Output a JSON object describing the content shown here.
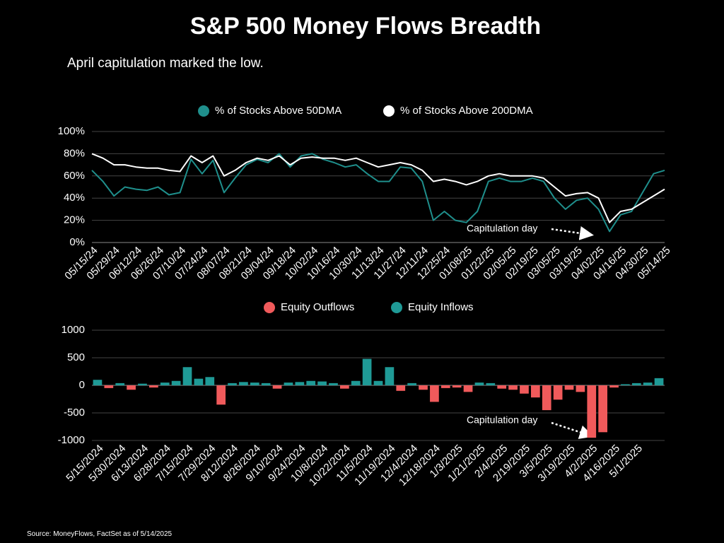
{
  "chart_data": [
    {
      "type": "line",
      "title": "S&P 500 Money Flows Breadth",
      "subtitle": "April capitulation marked the low.",
      "annotation": "Capitulation day",
      "categories": [
        "05/15/24",
        null,
        "05/29/24",
        null,
        "06/12/24",
        null,
        "06/26/24",
        null,
        "07/10/24",
        null,
        "07/24/24",
        null,
        "08/07/24",
        null,
        "08/21/24",
        null,
        "09/04/24",
        null,
        "09/18/24",
        null,
        "10/02/24",
        null,
        "10/16/24",
        null,
        "10/30/24",
        null,
        "11/13/24",
        null,
        "11/27/24",
        null,
        "12/11/24",
        null,
        "12/25/24",
        null,
        "01/08/25",
        null,
        "01/22/25",
        null,
        "02/05/25",
        null,
        "02/19/25",
        null,
        "03/05/25",
        null,
        "03/19/25",
        null,
        "04/02/25",
        null,
        "04/16/25",
        null,
        "04/30/25",
        null,
        "05/14/25"
      ],
      "series": [
        {
          "name": "% of Stocks Above 50DMA",
          "color": "#1f8f8c",
          "values": [
            65,
            55,
            42,
            50,
            48,
            47,
            50,
            43,
            45,
            75,
            62,
            74,
            45,
            58,
            70,
            75,
            72,
            80,
            68,
            78,
            80,
            75,
            72,
            68,
            70,
            62,
            55,
            55,
            68,
            67,
            55,
            20,
            28,
            20,
            18,
            28,
            55,
            58,
            55,
            55,
            58,
            55,
            40,
            30,
            38,
            40,
            30,
            10,
            25,
            28,
            45,
            62,
            65
          ]
        },
        {
          "name": "% of Stocks Above 200DMA",
          "color": "#ffffff",
          "values": [
            80,
            76,
            70,
            70,
            68,
            67,
            67,
            65,
            64,
            78,
            72,
            78,
            60,
            65,
            72,
            76,
            74,
            78,
            70,
            76,
            77,
            76,
            76,
            74,
            76,
            72,
            68,
            70,
            72,
            70,
            65,
            55,
            57,
            55,
            52,
            55,
            60,
            62,
            60,
            60,
            60,
            58,
            50,
            42,
            44,
            45,
            40,
            18,
            28,
            30,
            36,
            42,
            48
          ]
        }
      ],
      "ylim": [
        0,
        100
      ],
      "yticks": [
        {
          "value": 0,
          "label": "0%"
        },
        {
          "value": 20,
          "label": "20%"
        },
        {
          "value": 40,
          "label": "40%"
        },
        {
          "value": 60,
          "label": "60%"
        },
        {
          "value": 80,
          "label": "80%"
        },
        {
          "value": 100,
          "label": "100%"
        }
      ],
      "grid": true
    },
    {
      "type": "bar",
      "annotation": "Capitulation day",
      "categories": [
        "5/15/2024",
        null,
        "5/30/2024",
        null,
        "6/13/2024",
        null,
        "6/28/2024",
        null,
        "7/15/2024",
        null,
        "7/29/2024",
        null,
        "8/12/2024",
        null,
        "8/26/2024",
        null,
        "9/10/2024",
        null,
        "9/24/2024",
        null,
        "10/8/2024",
        null,
        "10/22/2024",
        null,
        "11/5/2024",
        null,
        "11/19/2024",
        null,
        "12/4/2024",
        null,
        "12/18/2024",
        null,
        "1/3/2025",
        null,
        "1/21/2025",
        null,
        "2/4/2025",
        null,
        "2/19/2025",
        null,
        "3/5/2025",
        null,
        "3/19/2025",
        null,
        "4/2/2025",
        null,
        "4/16/2025",
        null,
        "5/1/2025",
        null,
        null
      ],
      "series": [
        {
          "name": "Equity Outflows",
          "color": "#f05a5b",
          "values": [
            null,
            -50,
            null,
            -80,
            null,
            -40,
            null,
            null,
            null,
            null,
            null,
            -350,
            null,
            null,
            null,
            null,
            -60,
            null,
            null,
            null,
            null,
            null,
            -60,
            null,
            null,
            null,
            null,
            -100,
            null,
            -80,
            -300,
            -50,
            -40,
            -120,
            null,
            null,
            -60,
            -80,
            -150,
            -220,
            -450,
            -260,
            -80,
            -120,
            -950,
            -850,
            -40,
            null,
            null,
            null,
            null
          ]
        },
        {
          "name": "Equity Inflows",
          "color": "#1f9a96",
          "values": [
            100,
            null,
            40,
            null,
            30,
            null,
            50,
            80,
            330,
            120,
            150,
            null,
            40,
            60,
            50,
            40,
            null,
            50,
            60,
            80,
            70,
            40,
            null,
            80,
            480,
            80,
            330,
            null,
            40,
            null,
            null,
            null,
            null,
            null,
            50,
            40,
            null,
            null,
            null,
            null,
            null,
            null,
            null,
            null,
            null,
            null,
            null,
            20,
            40,
            50,
            130
          ]
        }
      ],
      "ylim": [
        -1000,
        1000
      ],
      "yticks": [
        -1000,
        -500,
        0,
        500,
        1000
      ],
      "grid": true
    }
  ],
  "source": "Source: MoneyFlows, FactSet as of 5/14/2025"
}
